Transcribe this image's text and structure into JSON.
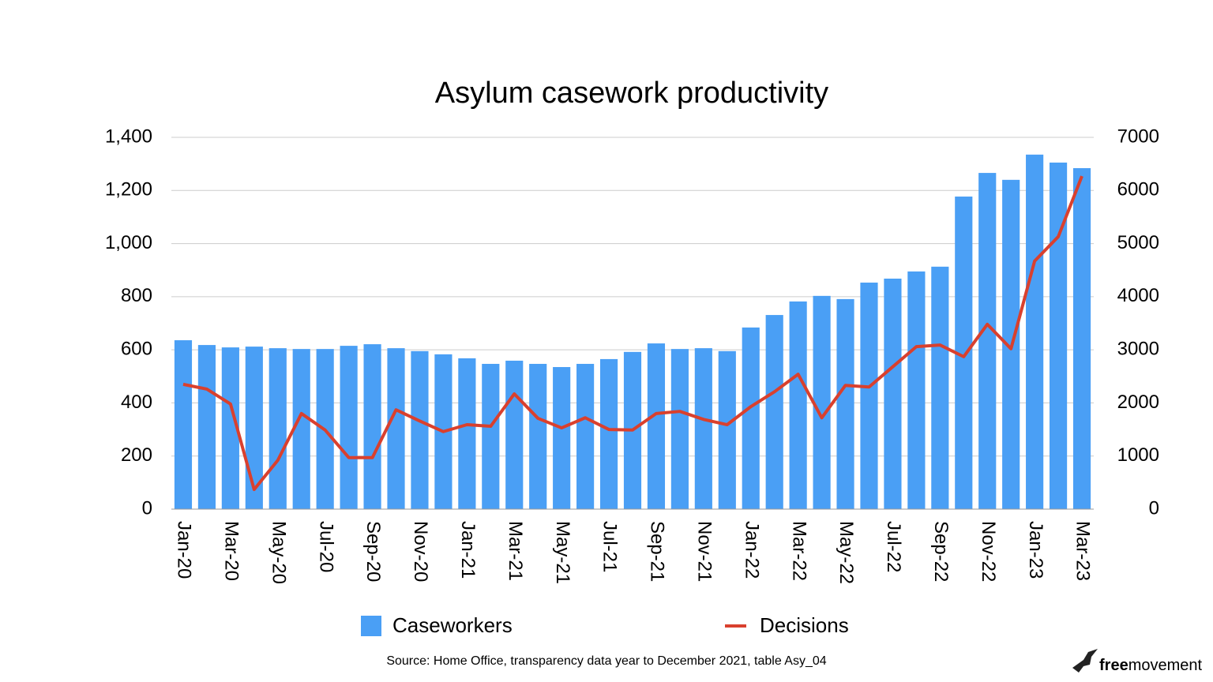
{
  "chart_data": {
    "type": "bar_line",
    "title": "Asylum casework productivity",
    "categories": [
      "Jan-20",
      null,
      "Mar-20",
      null,
      "May-20",
      null,
      "Jul-20",
      null,
      "Sep-20",
      null,
      "Nov-20",
      null,
      "Jan-21",
      null,
      "Mar-21",
      null,
      "May-21",
      null,
      "Jul-21",
      null,
      "Sep-21",
      null,
      "Nov-21",
      null,
      "Jan-22",
      null,
      "Mar-22",
      null,
      "May-22",
      null,
      "Jul-22",
      null,
      "Sep-22",
      null,
      "Nov-22",
      null,
      "Jan-23",
      null,
      "Mar-23"
    ],
    "series": [
      {
        "name": "Caseworkers",
        "type": "bar",
        "color": "#4a9ff5",
        "values": [
          636,
          618,
          609,
          612,
          606,
          603,
          603,
          615,
          621,
          606,
          595,
          583,
          568,
          547,
          559,
          547,
          535,
          547,
          565,
          592,
          624,
          603,
          606,
          595,
          684,
          731,
          782,
          803,
          791,
          853,
          868,
          895,
          913,
          1177,
          1266,
          1240,
          1335,
          1305,
          1284
        ]
      },
      {
        "name": "Decisions",
        "type": "line",
        "axis": "y2",
        "color": "#d9402e",
        "values": [
          2350,
          2260,
          1980,
          370,
          920,
          1800,
          1490,
          970,
          970,
          1870,
          1660,
          1460,
          1590,
          1560,
          2170,
          1710,
          1530,
          1720,
          1500,
          1490,
          1800,
          1840,
          1690,
          1590,
          1930,
          2210,
          2540,
          1720,
          2330,
          2300,
          2680,
          3060,
          3090,
          2870,
          3480,
          3020,
          4670,
          5130,
          6270
        ]
      }
    ],
    "ylim": [
      0,
      1400
    ],
    "yticks": [
      0,
      200,
      400,
      600,
      800,
      {
        "value": 1000,
        "label": "1,000"
      },
      {
        "value": 1200,
        "label": "1,200"
      },
      {
        "value": 1400,
        "label": "1,400"
      }
    ],
    "y2lim": [
      0,
      7000
    ],
    "y2ticks": [
      0,
      1000,
      2000,
      3000,
      4000,
      5000,
      6000,
      7000
    ],
    "grid": true,
    "legend": "bottom",
    "source": "Source: Home Office, transparency data year to December 2021, table Asy_04",
    "logo": {
      "bold": "free",
      "rest": "movement"
    }
  }
}
